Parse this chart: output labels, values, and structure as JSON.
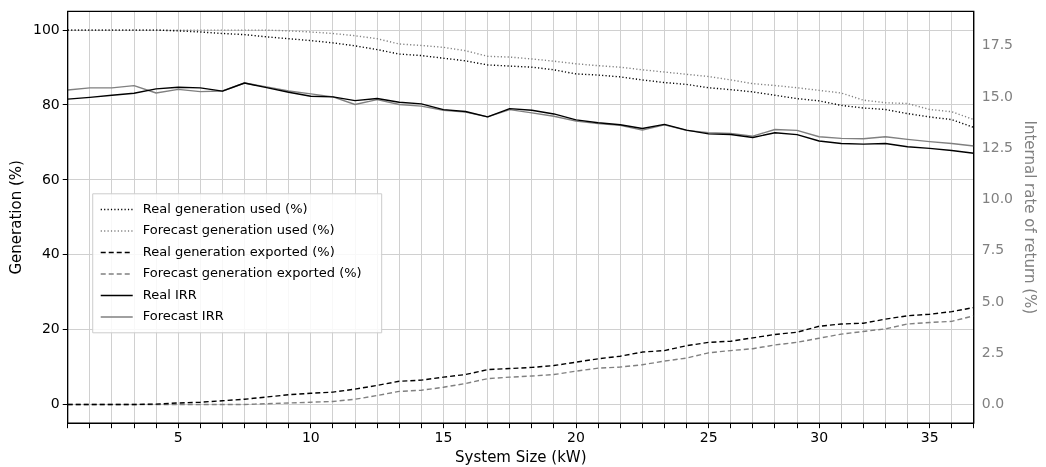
{
  "chart_data": {
    "type": "line",
    "xlabel": "System Size (kW)",
    "ylabel": "Generation (%)",
    "y2label": "Internal rate of return (%)",
    "categories": [
      null,
      null,
      null,
      null,
      null,
      "5",
      null,
      null,
      null,
      null,
      null,
      "10",
      null,
      null,
      null,
      null,
      null,
      "15",
      null,
      null,
      null,
      null,
      null,
      "20",
      null,
      null,
      null,
      null,
      null,
      "25",
      null,
      null,
      null,
      null,
      "30",
      null,
      null,
      null,
      null,
      "35",
      null,
      null
    ],
    "ylim": [
      -5,
      105
    ],
    "yticks": [
      0,
      20,
      40,
      60,
      80,
      100
    ],
    "y2lim": [
      -0.91,
      19.17
    ],
    "y2ticks": [
      {
        "value": 0,
        "label": "0.0"
      },
      {
        "value": 2.5,
        "label": "2.5"
      },
      {
        "value": 5,
        "label": "5.0"
      },
      {
        "value": 7.5,
        "label": "7.5"
      },
      {
        "value": 10,
        "label": "10.0"
      },
      {
        "value": 12.5,
        "label": "12.5"
      },
      {
        "value": 15,
        "label": "15.0"
      },
      {
        "value": 17.5,
        "label": "17.5"
      }
    ],
    "grid": true,
    "legend": "left",
    "series": [
      {
        "name": "Real generation used (%)",
        "color": "#000000",
        "line_style": "dotted",
        "values": [
          100,
          100,
          100,
          100,
          100,
          99.8,
          99.5,
          99.1,
          98.8,
          98.2,
          97.7,
          97.2,
          96.6,
          95.8,
          94.8,
          93.6,
          93.2,
          92.5,
          91.8,
          90.7,
          90.4,
          90.1,
          89.4,
          88.3,
          88.0,
          87.5,
          86.7,
          86.0,
          85.5,
          84.6,
          84.1,
          83.5,
          82.6,
          81.7,
          81.1,
          79.9,
          79.2,
          78.8,
          77.7,
          76.8,
          76.1,
          74.0
        ]
      },
      {
        "name": "Forecast generation used (%)",
        "color": "#808080",
        "line_style": "dotted",
        "values": [
          100,
          100,
          100,
          100,
          100,
          100,
          100,
          100,
          100,
          100,
          99.8,
          99.5,
          99.1,
          98.5,
          97.7,
          96.3,
          95.9,
          95.4,
          94.5,
          93.0,
          92.8,
          92.3,
          91.7,
          91.0,
          90.5,
          90.1,
          89.4,
          88.8,
          88.2,
          87.6,
          86.7,
          85.7,
          85.2,
          84.6,
          83.9,
          83.2,
          81.3,
          80.6,
          80.4,
          78.8,
          78.2,
          76.1
        ]
      },
      {
        "name": "Real generation exported (%)",
        "color": "#000000",
        "line_style": "dashed",
        "values": [
          0,
          0,
          0,
          0,
          0.1,
          0.4,
          0.6,
          1.0,
          1.4,
          2.0,
          2.6,
          3.0,
          3.3,
          4.1,
          5.1,
          6.2,
          6.5,
          7.3,
          8.0,
          9.3,
          9.6,
          9.9,
          10.4,
          11.3,
          12.2,
          12.9,
          14.0,
          14.4,
          15.7,
          16.6,
          16.9,
          17.8,
          18.7,
          19.3,
          20.9,
          21.5,
          21.7,
          22.8,
          23.7,
          24.1,
          24.8,
          25.9
        ]
      },
      {
        "name": "Forecast generation exported (%)",
        "color": "#808080",
        "line_style": "dashed",
        "values": [
          0,
          0,
          0,
          0,
          0,
          0,
          0,
          0,
          0,
          0.2,
          0.4,
          0.6,
          0.8,
          1.4,
          2.4,
          3.5,
          3.8,
          4.6,
          5.6,
          6.9,
          7.3,
          7.6,
          8.0,
          8.9,
          9.7,
          10.0,
          10.6,
          11.6,
          12.4,
          13.8,
          14.4,
          14.9,
          15.9,
          16.6,
          17.7,
          18.8,
          19.5,
          20.2,
          21.5,
          21.9,
          22.2,
          23.7
        ]
      },
      {
        "name": "Real IRR",
        "color": "#000000",
        "line_style": "solid",
        "axis": "y2",
        "values": [
          14.89,
          14.98,
          15.08,
          15.18,
          15.39,
          15.47,
          15.44,
          15.28,
          15.68,
          15.45,
          15.23,
          15.03,
          15.0,
          14.82,
          14.92,
          14.74,
          14.66,
          14.38,
          14.29,
          14.03,
          14.43,
          14.35,
          14.17,
          13.88,
          13.74,
          13.64,
          13.46,
          13.66,
          13.38,
          13.2,
          13.17,
          13.02,
          13.25,
          13.16,
          12.85,
          12.73,
          12.7,
          12.73,
          12.57,
          12.49,
          12.39,
          12.25
        ]
      },
      {
        "name": "Forecast IRR",
        "color": "#808080",
        "line_style": "solid",
        "axis": "y2",
        "values": [
          15.34,
          15.44,
          15.44,
          15.55,
          15.19,
          15.37,
          15.26,
          15.29,
          15.68,
          15.49,
          15.29,
          15.15,
          15.0,
          14.63,
          14.87,
          14.63,
          14.55,
          14.35,
          14.26,
          14.03,
          14.38,
          14.22,
          14.06,
          13.82,
          13.7,
          13.61,
          13.38,
          13.64,
          13.37,
          13.25,
          13.22,
          13.09,
          13.41,
          13.37,
          13.06,
          12.98,
          12.96,
          13.06,
          12.93,
          12.82,
          12.73,
          12.61
        ]
      }
    ]
  }
}
